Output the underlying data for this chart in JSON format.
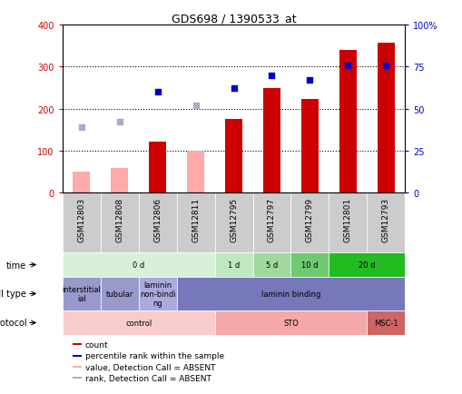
{
  "title": "GDS698 / 1390533_at",
  "samples": [
    "GSM12803",
    "GSM12808",
    "GSM12806",
    "GSM12811",
    "GSM12795",
    "GSM12797",
    "GSM12799",
    "GSM12801",
    "GSM12793"
  ],
  "count_values": [
    0,
    0,
    120,
    0,
    175,
    248,
    222,
    340,
    357
  ],
  "count_absent": [
    50,
    57,
    0,
    99,
    0,
    0,
    0,
    0,
    0
  ],
  "percentile_values_pct": [
    0,
    0,
    60,
    0,
    62,
    70,
    67,
    76,
    76
  ],
  "percentile_absent_pct": [
    39,
    42,
    0,
    52,
    0,
    0,
    0,
    0,
    0
  ],
  "has_present": [
    false,
    false,
    true,
    false,
    true,
    true,
    true,
    true,
    true
  ],
  "ylim_left": [
    0,
    400
  ],
  "ylim_right": [
    0,
    100
  ],
  "y_ticks_left": [
    0,
    100,
    200,
    300,
    400
  ],
  "y_ticks_right": [
    0,
    25,
    50,
    75,
    100
  ],
  "time_groups": [
    {
      "label": "0 d",
      "start": 0,
      "end": 4,
      "color": "#d8f0d8"
    },
    {
      "label": "1 d",
      "start": 4,
      "end": 5,
      "color": "#c0e8c0"
    },
    {
      "label": "5 d",
      "start": 5,
      "end": 6,
      "color": "#a0d8a0"
    },
    {
      "label": "10 d",
      "start": 6,
      "end": 7,
      "color": "#70c870"
    },
    {
      "label": "20 d",
      "start": 7,
      "end": 9,
      "color": "#22bb22"
    }
  ],
  "cell_type_groups": [
    {
      "label": "interstitial\nial",
      "start": 0,
      "end": 1,
      "color": "#9999cc"
    },
    {
      "label": "tubular",
      "start": 1,
      "end": 2,
      "color": "#9999cc"
    },
    {
      "label": "laminin\nnon-bindi\nng",
      "start": 2,
      "end": 3,
      "color": "#aaaadd"
    },
    {
      "label": "laminin binding",
      "start": 3,
      "end": 9,
      "color": "#7777bb"
    }
  ],
  "growth_groups": [
    {
      "label": "control",
      "start": 0,
      "end": 4,
      "color": "#f9cccc"
    },
    {
      "label": "STO",
      "start": 4,
      "end": 8,
      "color": "#f4a8a8"
    },
    {
      "label": "MSC-1",
      "start": 8,
      "end": 9,
      "color": "#cc6666"
    }
  ],
  "bar_color_present": "#cc0000",
  "bar_color_absent": "#ffaaaa",
  "dot_color_present": "#0000cc",
  "dot_color_absent": "#aaaacc",
  "bar_width": 0.45,
  "bg_color": "#ffffff",
  "sample_bg_color": "#cccccc",
  "left_color": "#cc0000",
  "right_color": "#0000cc"
}
